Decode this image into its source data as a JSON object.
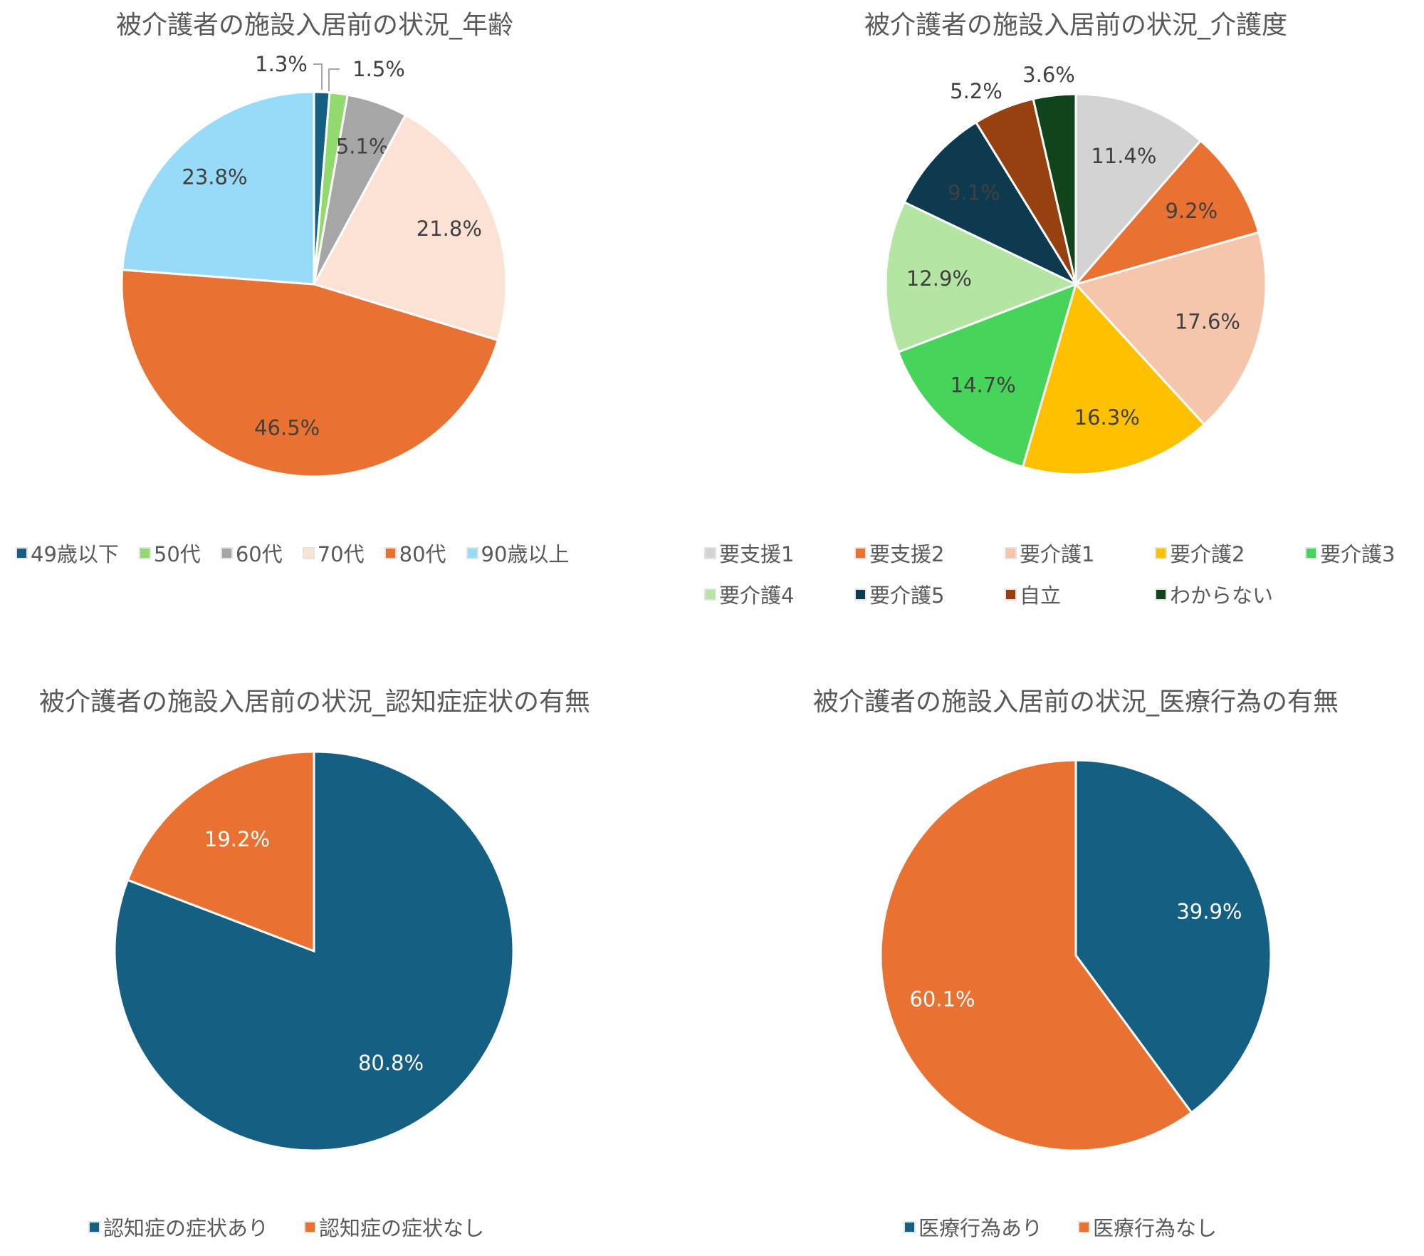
{
  "chart_data": [
    {
      "type": "pie",
      "title": "被介護者の施設入居前の状況_年齢",
      "categories": [
        "49歳以下",
        "50代",
        "60代",
        "70代",
        "80代",
        "90歳以上"
      ],
      "values": [
        1.3,
        1.5,
        5.1,
        21.8,
        46.5,
        23.8
      ],
      "labels": [
        "1.3%",
        "1.5%",
        "5.1%",
        "21.8%",
        "46.5%",
        "23.8%"
      ],
      "colors": [
        "#156082",
        "#92d96e",
        "#a6a6a6",
        "#fbe2d5",
        "#e97132",
        "#98dbf8"
      ],
      "legend": "bottom"
    },
    {
      "type": "pie",
      "title": "被介護者の施設入居前の状況_介護度",
      "categories": [
        "要支援1",
        "要支援2",
        "要介護1",
        "要介護2",
        "要介護3",
        "要介護4",
        "要介護5",
        "自立",
        "わからない"
      ],
      "values": [
        11.4,
        9.2,
        17.6,
        16.3,
        14.7,
        12.9,
        9.1,
        5.2,
        3.6
      ],
      "labels": [
        "11.4%",
        "9.2%",
        "17.6%",
        "16.3%",
        "14.7%",
        "12.9%",
        "9.1%",
        "5.2%",
        "3.6%"
      ],
      "colors": [
        "#d3d3d3",
        "#e97132",
        "#f5c6ab",
        "#ffc000",
        "#47d45a",
        "#b4e5a2",
        "#0e3a50",
        "#974010",
        "#12441c"
      ],
      "legend": "bottom"
    },
    {
      "type": "pie",
      "title": "被介護者の施設入居前の状況_認知症症状の有無",
      "categories": [
        "認知症の症状あり",
        "認知症の症状なし"
      ],
      "values": [
        80.8,
        19.2
      ],
      "labels": [
        "80.8%",
        "19.2%"
      ],
      "colors": [
        "#156082",
        "#e97132"
      ],
      "legend": "bottom"
    },
    {
      "type": "pie",
      "title": "被介護者の施設入居前の状況_医療行為の有無",
      "categories": [
        "医療行為あり",
        "医療行為なし"
      ],
      "values": [
        39.9,
        60.1
      ],
      "labels": [
        "39.9%",
        "60.1%"
      ],
      "colors": [
        "#156082",
        "#e97132"
      ],
      "legend": "bottom"
    }
  ]
}
